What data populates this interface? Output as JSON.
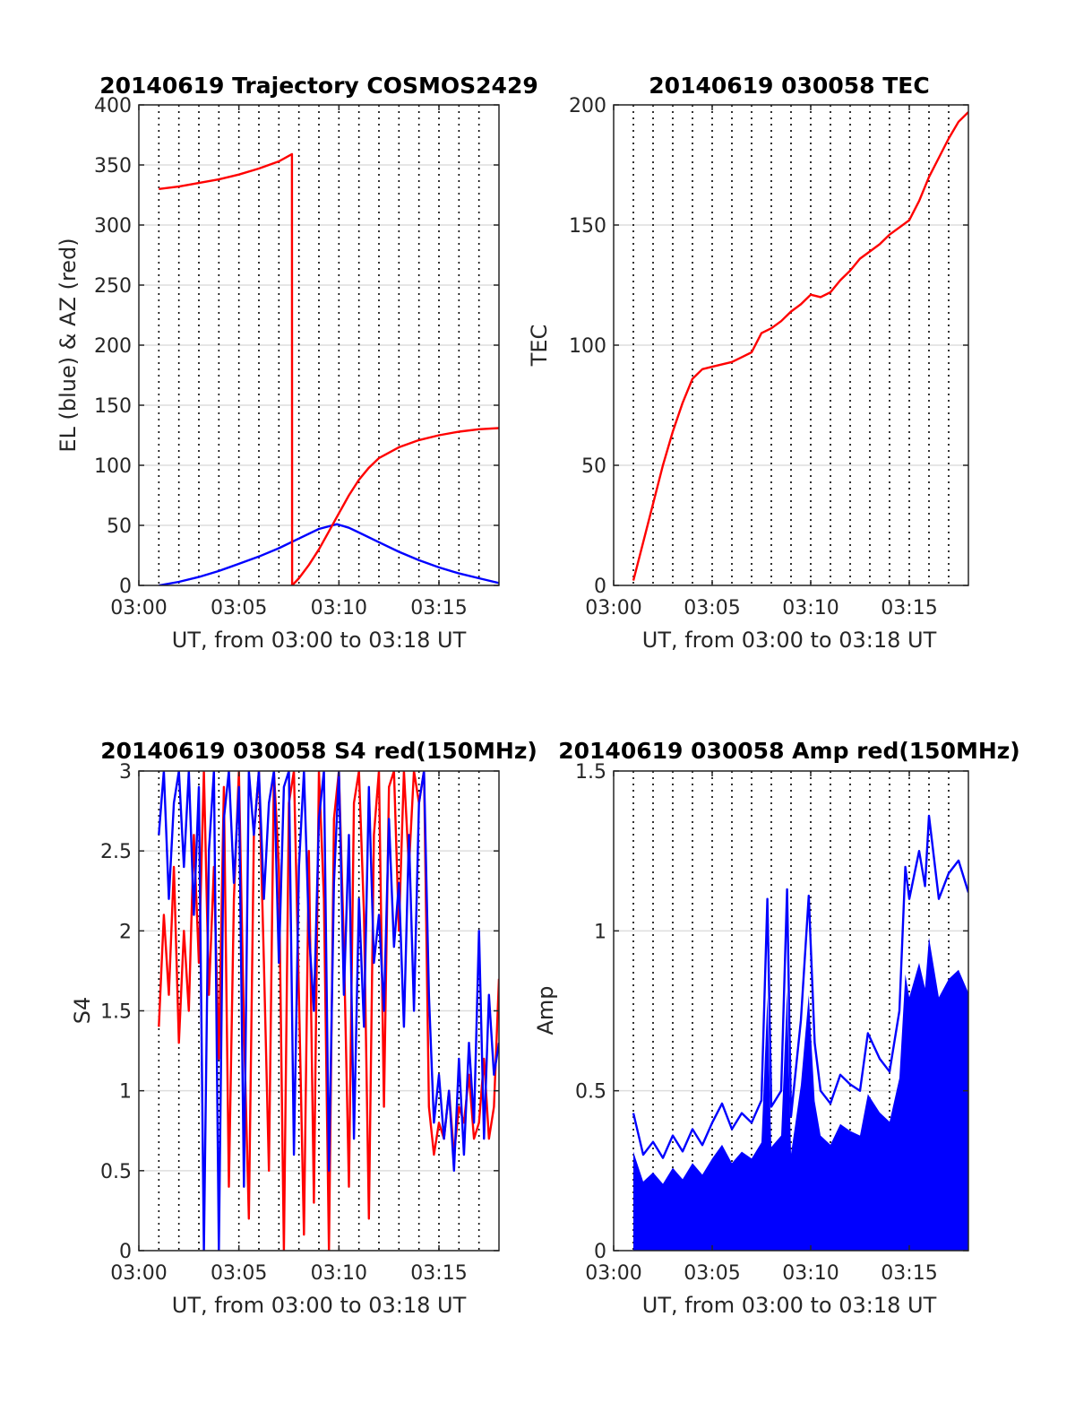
{
  "figure": {
    "background": "#ffffff"
  },
  "chart_data": [
    {
      "id": "trajectory",
      "type": "line",
      "title": "20140619 Trajectory COSMOS2429",
      "xlabel": "UT, from 03:00 to 03:18 UT",
      "ylabel": "EL (blue) & AZ (red)",
      "xlim": [
        0,
        18
      ],
      "ylim": [
        0,
        400
      ],
      "xticks": [
        0,
        5,
        10,
        15
      ],
      "xticklabels": [
        "03:00",
        "03:05",
        "03:10",
        "03:15"
      ],
      "yticks": [
        0,
        50,
        100,
        150,
        200,
        250,
        300,
        350,
        400
      ],
      "yticklabels": [
        "0",
        "50",
        "100",
        "150",
        "200",
        "250",
        "300",
        "350",
        "400"
      ],
      "grid": {
        "horizontal": true,
        "vertical_dotted_every_min": 1
      },
      "series": [
        {
          "color": "#0000ff",
          "x": [
            1,
            2,
            3,
            4,
            5,
            6,
            7,
            8,
            9,
            9.9,
            10.5,
            11,
            12,
            13,
            14,
            15,
            16,
            17,
            18
          ],
          "values": [
            0,
            3,
            7,
            12,
            18,
            24,
            31,
            39,
            47,
            51,
            48,
            44,
            36,
            28,
            21,
            15,
            10,
            6,
            2
          ]
        },
        {
          "color": "#ff0000",
          "x": [
            1,
            2,
            3,
            4,
            5,
            6,
            7,
            7.65,
            7.66,
            8,
            8.5,
            9,
            9.5,
            10,
            10.5,
            11,
            11.5,
            12,
            13,
            14,
            15,
            16,
            17,
            18
          ],
          "values": [
            330,
            332,
            335,
            338,
            342,
            347,
            353,
            359,
            0,
            6,
            17,
            30,
            45,
            60,
            75,
            88,
            98,
            106,
            115,
            121,
            125,
            128,
            130,
            131
          ]
        }
      ]
    },
    {
      "id": "tec",
      "type": "line",
      "title": "20140619 030058 TEC",
      "xlabel": "UT, from 03:00 to 03:18 UT",
      "ylabel": "TEC",
      "xlim": [
        0,
        18
      ],
      "ylim": [
        0,
        200
      ],
      "xticks": [
        0,
        5,
        10,
        15
      ],
      "xticklabels": [
        "03:00",
        "03:05",
        "03:10",
        "03:15"
      ],
      "yticks": [
        0,
        50,
        100,
        150,
        200
      ],
      "yticklabels": [
        "0",
        "50",
        "100",
        "150",
        "200"
      ],
      "grid": {
        "horizontal": true,
        "vertical_dotted_every_min": 1
      },
      "series": [
        {
          "color": "#ff0000",
          "x": [
            1,
            1.5,
            2,
            2.5,
            3,
            3.5,
            4,
            4.5,
            5,
            5.5,
            6,
            6.5,
            7,
            7.5,
            8,
            8.5,
            9,
            9.5,
            10,
            10.5,
            11,
            11.5,
            12,
            12.5,
            13,
            13.5,
            14,
            14.5,
            15,
            15.5,
            16,
            16.5,
            17,
            17.5,
            18
          ],
          "values": [
            2,
            18,
            34,
            50,
            64,
            76,
            86,
            90,
            91,
            92,
            93,
            95,
            97,
            105,
            107,
            110,
            114,
            117,
            121,
            120,
            122,
            127,
            131,
            136,
            139,
            142,
            146,
            149,
            152,
            160,
            170,
            178,
            186,
            193,
            197
          ]
        }
      ]
    },
    {
      "id": "s4",
      "type": "line",
      "title": "20140619 030058 S4 red(150MHz)",
      "xlabel": "UT, from 03:00 to 03:18 UT",
      "ylabel": "S4",
      "xlim": [
        0,
        18
      ],
      "ylim": [
        0,
        3
      ],
      "xticks": [
        0,
        5,
        10,
        15
      ],
      "xticklabels": [
        "03:00",
        "03:05",
        "03:10",
        "03:15"
      ],
      "yticks": [
        0,
        0.5,
        1,
        1.5,
        2,
        2.5,
        3
      ],
      "yticklabels": [
        "0",
        "0.5",
        "1",
        "1.5",
        "2",
        "2.5",
        "3"
      ],
      "grid": {
        "horizontal": true,
        "vertical_dotted_every_min": 1
      },
      "series": [
        {
          "color": "#ff0000",
          "x": [
            1,
            1.25,
            1.5,
            1.75,
            2,
            2.25,
            2.5,
            2.75,
            3,
            3.25,
            3.5,
            3.75,
            4,
            4.25,
            4.5,
            4.75,
            5,
            5.25,
            5.5,
            5.75,
            6,
            6.25,
            6.5,
            6.75,
            7,
            7.25,
            7.5,
            7.75,
            8,
            8.25,
            8.5,
            8.75,
            9,
            9.25,
            9.5,
            9.75,
            10,
            10.25,
            10.5,
            10.75,
            11,
            11.25,
            11.5,
            11.75,
            12,
            12.25,
            12.5,
            12.75,
            13,
            13.25,
            13.5,
            13.75,
            14,
            14.25,
            14.5,
            14.75,
            15,
            15.25,
            15.5,
            15.75,
            16,
            16.25,
            16.5,
            16.75,
            17,
            17.25,
            17.5,
            17.75,
            18
          ],
          "values": [
            1.4,
            2.1,
            1.6,
            2.4,
            1.3,
            2.0,
            1.5,
            2.6,
            1.8,
            3.0,
            1.6,
            2.4,
            1.2,
            2.9,
            0.4,
            2.2,
            3.0,
            1.4,
            0.2,
            2.6,
            3.0,
            1.8,
            0.5,
            3.0,
            2.4,
            0.0,
            2.8,
            3.0,
            1.6,
            0.1,
            2.5,
            0.3,
            3.0,
            2.2,
            0.0,
            2.7,
            3.0,
            1.9,
            0.4,
            2.8,
            3.0,
            2.1,
            0.2,
            2.6,
            3.0,
            0.9,
            2.9,
            3.0,
            2.0,
            3.0,
            2.4,
            3.0,
            2.8,
            3.0,
            0.9,
            0.6,
            0.8,
            0.7,
            1.0,
            0.6,
            0.9,
            0.8,
            1.1,
            0.7,
            0.8,
            1.2,
            0.7,
            0.9,
            1.7
          ]
        },
        {
          "color": "#0000ff",
          "x": [
            1,
            1.25,
            1.5,
            1.75,
            2,
            2.25,
            2.5,
            2.75,
            3,
            3.25,
            3.5,
            3.75,
            4,
            4.25,
            4.5,
            4.75,
            5,
            5.25,
            5.5,
            5.75,
            6,
            6.25,
            6.5,
            6.75,
            7,
            7.25,
            7.5,
            7.75,
            8,
            8.25,
            8.5,
            8.75,
            9,
            9.25,
            9.5,
            9.75,
            10,
            10.25,
            10.5,
            10.75,
            11,
            11.25,
            11.5,
            11.75,
            12,
            12.25,
            12.5,
            12.75,
            13,
            13.25,
            13.5,
            13.75,
            14,
            14.25,
            14.5,
            14.75,
            15,
            15.25,
            15.5,
            15.75,
            16,
            16.25,
            16.5,
            16.75,
            17,
            17.25,
            17.5,
            17.75,
            18
          ],
          "values": [
            2.6,
            3.0,
            2.2,
            2.8,
            3.0,
            2.4,
            3.0,
            2.1,
            2.9,
            0.0,
            2.5,
            3.0,
            0.0,
            2.7,
            3.0,
            2.3,
            2.9,
            0.4,
            3.0,
            2.6,
            3.0,
            2.2,
            2.8,
            3.0,
            1.8,
            2.9,
            3.0,
            0.6,
            2.4,
            3.0,
            2.0,
            1.5,
            2.7,
            3.0,
            0.5,
            2.3,
            3.0,
            1.6,
            2.6,
            0.7,
            2.2,
            1.4,
            2.9,
            1.8,
            2.1,
            1.5,
            2.7,
            1.9,
            2.3,
            1.4,
            2.6,
            1.5,
            2.8,
            3.0,
            1.6,
            0.8,
            1.1,
            0.7,
            1.0,
            0.5,
            1.2,
            0.6,
            1.3,
            0.8,
            2.0,
            0.7,
            1.6,
            1.1,
            1.3
          ]
        }
      ]
    },
    {
      "id": "amp",
      "type": "line",
      "title": "20140619 030058 Amp red(150MHz)",
      "xlabel": "UT, from 03:00 to 03:18 UT",
      "ylabel": "Amp",
      "xlim": [
        0,
        18
      ],
      "ylim": [
        0,
        1.5
      ],
      "xticks": [
        0,
        5,
        10,
        15
      ],
      "xticklabels": [
        "03:00",
        "03:05",
        "03:10",
        "03:15"
      ],
      "yticks": [
        0,
        0.5,
        1,
        1.5
      ],
      "yticklabels": [
        "0",
        "0.5",
        "1",
        "1.5"
      ],
      "grid": {
        "horizontal": true,
        "vertical_dotted_every_min": 1
      },
      "series": [
        {
          "color": "#0000ff",
          "x": [
            1,
            1.5,
            2,
            2.5,
            3,
            3.5,
            4,
            4.5,
            5,
            5.5,
            6,
            6.5,
            7,
            7.5,
            7.8,
            8,
            8.5,
            8.8,
            9,
            9.5,
            9.9,
            10.2,
            10.5,
            11,
            11.5,
            12,
            12.5,
            12.9,
            13.5,
            14,
            14.5,
            14.8,
            15,
            15.5,
            15.8,
            16,
            16.5,
            17,
            17.5,
            18
          ],
          "values": [
            0.43,
            0.3,
            0.34,
            0.29,
            0.36,
            0.31,
            0.38,
            0.33,
            0.4,
            0.46,
            0.38,
            0.43,
            0.4,
            0.47,
            1.1,
            0.45,
            0.5,
            1.13,
            0.42,
            0.72,
            1.11,
            0.65,
            0.5,
            0.46,
            0.55,
            0.52,
            0.5,
            0.68,
            0.6,
            0.56,
            0.75,
            1.2,
            1.1,
            1.25,
            1.14,
            1.36,
            1.1,
            1.18,
            1.22,
            1.12
          ]
        }
      ]
    }
  ]
}
